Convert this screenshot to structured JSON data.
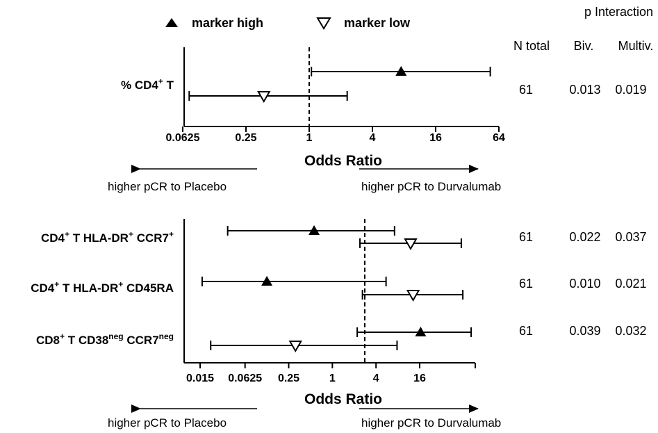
{
  "legend": {
    "high_label": "marker high",
    "low_label": "marker low"
  },
  "table_header": {
    "p_interaction": "p Interaction",
    "n_total": "N total",
    "biv": "Biv.",
    "multiv": "Multiv."
  },
  "direction": {
    "left": "higher pCR to Placebo",
    "right": "higher pCR to Durvalumab"
  },
  "chart_data": [
    {
      "type": "forest",
      "xlabel": "Odds Ratio",
      "xscale": "log2",
      "xlim": [
        0.0625,
        64
      ],
      "reference_line": 1,
      "ticks": [
        {
          "value": 0.0625,
          "label": "0.0625"
        },
        {
          "value": 0.25,
          "label": "0.25"
        },
        {
          "value": 1,
          "label": "1"
        },
        {
          "value": 4,
          "label": "4"
        },
        {
          "value": 16,
          "label": "16"
        },
        {
          "value": 64,
          "label": "64"
        }
      ],
      "rows": [
        {
          "label": "% CD4",
          "label_sup": "+",
          "label_tail": " T",
          "n_total": "61",
          "p_biv": "0.013",
          "p_multiv": "0.019",
          "high": {
            "or": 7.5,
            "ci_low": 1.05,
            "ci_high": 53
          },
          "low": {
            "or": 0.37,
            "ci_low": 0.072,
            "ci_high": 2.3
          }
        }
      ]
    },
    {
      "type": "forest",
      "xlabel": "Odds Ratio",
      "xscale": "log2",
      "xlim": [
        0.0078,
        256
      ],
      "reference_line": 2.7,
      "ticks": [
        {
          "value": 0.015,
          "label": "0.015"
        },
        {
          "value": 0.0625,
          "label": "0.0625"
        },
        {
          "value": 0.25,
          "label": "0.25"
        },
        {
          "value": 1,
          "label": "1"
        },
        {
          "value": 4,
          "label": "4"
        },
        {
          "value": 16,
          "label": "16"
        },
        {
          "value": 64,
          "label": ""
        }
      ],
      "rows": [
        {
          "label": "CD4",
          "label_sup": "+",
          "label_tail": " T HLA-DR",
          "label_sup2": "+",
          "label_tail2": " CCR7",
          "label_sup3": "+",
          "n_total": "61",
          "p_biv": "0.022",
          "p_multiv": "0.037",
          "high": {
            "or": 0.56,
            "ci_low": 0.036,
            "ci_high": 7.2
          },
          "low": {
            "or": 12,
            "ci_low": 2.4,
            "ci_high": 60
          }
        },
        {
          "label": "CD4",
          "label_sup": "+",
          "label_tail": " T HLA-DR",
          "label_sup2": "+",
          "label_tail2": " CD45RA",
          "label_sup3": "",
          "n_total": "61",
          "p_biv": "0.010",
          "p_multiv": "0.021",
          "high": {
            "or": 0.125,
            "ci_low": 0.016,
            "ci_high": 5.5
          },
          "low": {
            "or": 13,
            "ci_low": 2.6,
            "ci_high": 63
          }
        },
        {
          "label": "CD8",
          "label_sup": "+",
          "label_tail": " T CD38",
          "label_sup2": "neg",
          "label_tail2": " CCR7",
          "label_sup3": "neg",
          "n_total": "61",
          "p_biv": "0.039",
          "p_multiv": "0.032",
          "high": {
            "or": 16.5,
            "ci_low": 2.2,
            "ci_high": 82
          },
          "low": {
            "or": 0.31,
            "ci_low": 0.021,
            "ci_high": 7.8
          }
        }
      ]
    }
  ]
}
